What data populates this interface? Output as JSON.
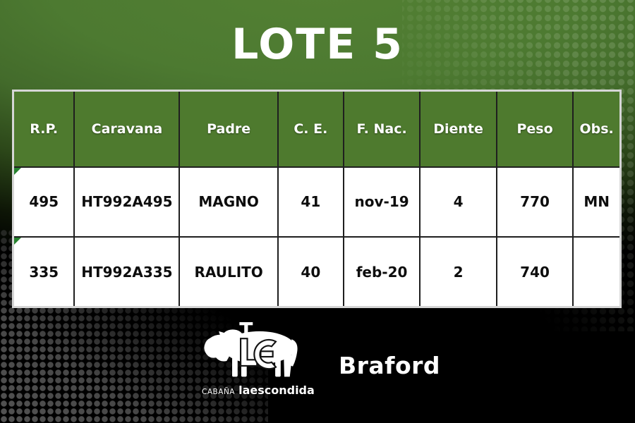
{
  "title": "LOTE 5",
  "table": {
    "headers": [
      "R.P.",
      "Caravana",
      "Padre",
      "C. E.",
      "F. Nac.",
      "Diente",
      "Peso",
      "Obs."
    ],
    "rows": [
      [
        "495",
        "HT992A495",
        "MAGNO",
        "41",
        "nov-19",
        "4",
        "770",
        "MN"
      ],
      [
        "335",
        "HT992A335",
        "RAULITO",
        "40",
        "feb-20",
        "2",
        "740",
        ""
      ]
    ]
  },
  "footer": {
    "estancia_prefix": "CABAÑA",
    "estancia_name": "laescondida",
    "breed_label": "Braford"
  },
  "icons": {
    "logo": "bull-le-brand-icon"
  },
  "colors": {
    "header_green": "#4e7a2e",
    "gradient_green": "#4e7d32",
    "background_black": "#000000",
    "halftone_gray": "#535353",
    "cell_flag_green": "#26812e"
  }
}
